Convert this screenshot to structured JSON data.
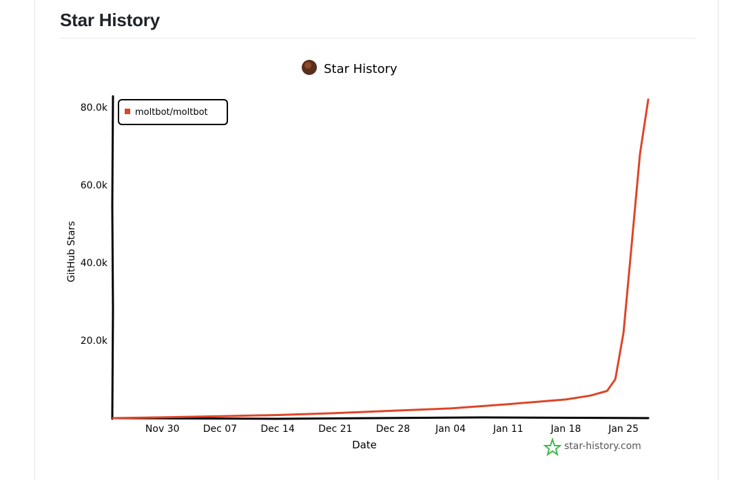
{
  "section": {
    "title": "Star History"
  },
  "chart_data": {
    "type": "line",
    "title": "Star History",
    "xlabel": "Date",
    "ylabel": "GitHub Stars",
    "x_ticks": [
      "Nov 30",
      "Dec 07",
      "Dec 14",
      "Dec 21",
      "Dec 28",
      "Jan 04",
      "Jan 11",
      "Jan 18",
      "Jan 25"
    ],
    "y_ticks": [
      "20.0k",
      "40.0k",
      "60.0k",
      "80.0k"
    ],
    "ylim": [
      0,
      80000
    ],
    "legend": {
      "placement": "top-left"
    },
    "grid": false,
    "series": [
      {
        "name": "moltbot/moltbot",
        "color": "#dd4528",
        "points": [
          {
            "x": "2025-11-24",
            "y": 0
          },
          {
            "x": "2025-11-30",
            "y": 200
          },
          {
            "x": "2025-12-07",
            "y": 500
          },
          {
            "x": "2025-12-14",
            "y": 800
          },
          {
            "x": "2025-12-21",
            "y": 1300
          },
          {
            "x": "2025-12-28",
            "y": 1900
          },
          {
            "x": "2026-01-04",
            "y": 2500
          },
          {
            "x": "2026-01-11",
            "y": 3600
          },
          {
            "x": "2026-01-18",
            "y": 4800
          },
          {
            "x": "2026-01-21",
            "y": 5800
          },
          {
            "x": "2026-01-23",
            "y": 7000
          },
          {
            "x": "2026-01-24",
            "y": 10000
          },
          {
            "x": "2026-01-25",
            "y": 22000
          },
          {
            "x": "2026-01-26",
            "y": 45000
          },
          {
            "x": "2026-01-27",
            "y": 68000
          },
          {
            "x": "2026-01-28",
            "y": 82000
          }
        ]
      }
    ]
  },
  "watermark": {
    "text": "star-history.com",
    "color": "#3fb950"
  }
}
